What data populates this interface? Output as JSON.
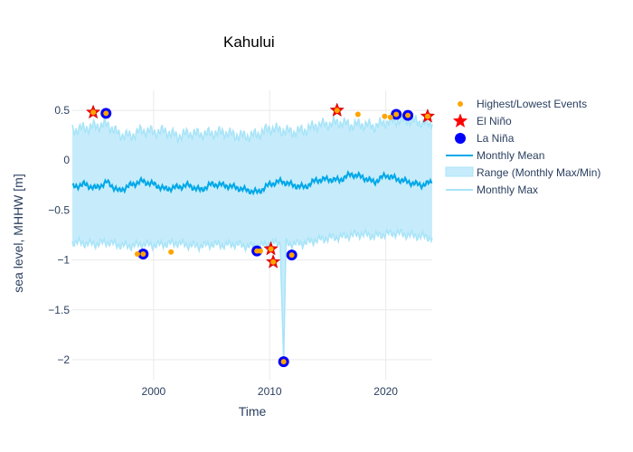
{
  "chart_data": {
    "type": "line",
    "title": "Kahului",
    "xlabel": "Time",
    "ylabel": "sea level, MHHW [m]",
    "xlim": [
      1993,
      2024
    ],
    "ylim": [
      -2.2,
      0.7
    ],
    "x_ticks": [
      2000,
      2010,
      2020
    ],
    "y_ticks": [
      0.5,
      0,
      -0.5,
      -1,
      -1.5,
      -2
    ],
    "y_tick_labels": [
      "0.5",
      "0",
      "−0.5",
      "−1",
      "−1.5",
      "−2"
    ],
    "grid": true,
    "legend_position": "right",
    "legend": {
      "events": "Highest/Lowest Events",
      "el_nino": "El Niño",
      "la_nina": "La Niña",
      "mean": "Monthly Mean",
      "range": "Range (Monthly Max/Min)",
      "max": "Monthly Max"
    },
    "colors": {
      "mean": "#00a8e8",
      "range_fill": "#c6ecfb",
      "max_line": "#a8e4f8",
      "events": "#ffa500",
      "el_nino": "#ff0000",
      "la_nina": "#0000ff",
      "grid": "#eaeaea"
    },
    "monthly_mean_yearly": {
      "x": [
        1993,
        1994,
        1995,
        1996,
        1997,
        1998,
        1999,
        2000,
        2001,
        2002,
        2003,
        2004,
        2005,
        2006,
        2007,
        2008,
        2009,
        2010,
        2011,
        2012,
        2013,
        2014,
        2015,
        2016,
        2017,
        2018,
        2019,
        2020,
        2021,
        2022,
        2023,
        2024
      ],
      "y": [
        -0.27,
        -0.24,
        -0.28,
        -0.22,
        -0.31,
        -0.25,
        -0.21,
        -0.24,
        -0.29,
        -0.27,
        -0.25,
        -0.3,
        -0.24,
        -0.25,
        -0.27,
        -0.3,
        -0.32,
        -0.24,
        -0.21,
        -0.25,
        -0.27,
        -0.2,
        -0.19,
        -0.2,
        -0.14,
        -0.17,
        -0.22,
        -0.15,
        -0.19,
        -0.22,
        -0.25,
        -0.22
      ]
    },
    "monthly_max_yearly": {
      "x": [
        1993,
        1994,
        1995,
        1996,
        1997,
        1998,
        1999,
        2000,
        2001,
        2002,
        2003,
        2004,
        2005,
        2006,
        2007,
        2008,
        2009,
        2010,
        2011,
        2012,
        2013,
        2014,
        2015,
        2016,
        2017,
        2018,
        2019,
        2020,
        2021,
        2022,
        2023,
        2024
      ],
      "y": [
        0.3,
        0.32,
        0.34,
        0.36,
        0.26,
        0.24,
        0.3,
        0.28,
        0.29,
        0.24,
        0.27,
        0.26,
        0.27,
        0.28,
        0.25,
        0.24,
        0.26,
        0.32,
        0.3,
        0.28,
        0.3,
        0.35,
        0.36,
        0.38,
        0.35,
        0.36,
        0.34,
        0.38,
        0.4,
        0.4,
        0.38,
        0.36
      ]
    },
    "monthly_min_yearly": {
      "x": [
        1993,
        1994,
        1995,
        1996,
        1997,
        1998,
        1999,
        2000,
        2001,
        2002,
        2003,
        2004,
        2005,
        2006,
        2007,
        2008,
        2009,
        2010,
        2011,
        2012,
        2013,
        2014,
        2015,
        2016,
        2017,
        2018,
        2019,
        2020,
        2021,
        2022,
        2023,
        2024
      ],
      "y": [
        -0.82,
        -0.83,
        -0.84,
        -0.82,
        -0.85,
        -0.86,
        -0.84,
        -0.85,
        -0.84,
        -0.83,
        -0.85,
        -0.86,
        -0.84,
        -0.85,
        -0.84,
        -0.86,
        -0.86,
        -0.84,
        -0.82,
        -0.84,
        -0.83,
        -0.8,
        -0.78,
        -0.77,
        -0.75,
        -0.74,
        -0.76,
        -0.74,
        -0.73,
        -0.75,
        -0.76,
        -0.78
      ]
    },
    "min_spike": {
      "x": [
        2010.9,
        2011.2,
        2011.4
      ],
      "y": [
        -0.85,
        -2.02,
        -0.85
      ]
    },
    "highest_lowest_events": {
      "x": [
        1994.8,
        1995.9,
        1998.6,
        1999.1,
        2001.5,
        2008.9,
        2009.2,
        2010.1,
        2010.3,
        2011.2,
        2011.9,
        2015.8,
        2017.6,
        2019.9,
        2020.4,
        2020.9,
        2021.9,
        2023.6
      ],
      "y": [
        0.48,
        0.47,
        -0.94,
        -0.94,
        -0.92,
        -0.91,
        -0.91,
        -0.89,
        -1.02,
        -2.02,
        -0.95,
        0.5,
        0.46,
        0.44,
        0.43,
        0.46,
        0.45,
        0.44
      ]
    },
    "el_nino": {
      "x": [
        1994.8,
        2010.1,
        2010.3,
        2015.8,
        2023.6
      ],
      "y": [
        0.48,
        -0.89,
        -1.02,
        0.5,
        0.44
      ]
    },
    "la_nina": {
      "x": [
        1995.9,
        1999.1,
        2008.9,
        2011.2,
        2011.9,
        2020.9,
        2021.9
      ],
      "y": [
        0.47,
        -0.94,
        -0.91,
        -2.02,
        -0.95,
        0.46,
        0.45
      ]
    }
  }
}
